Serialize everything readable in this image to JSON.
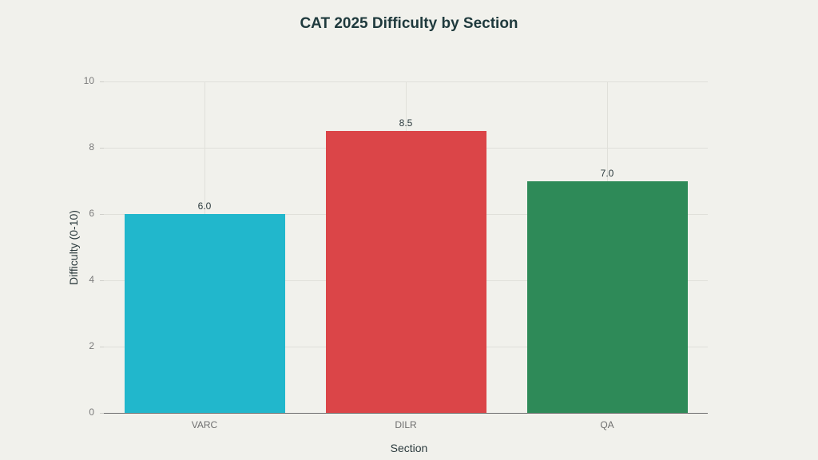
{
  "chart_data": {
    "type": "bar",
    "title": "CAT 2025 Difficulty by Section",
    "xlabel": "Section",
    "ylabel": "Difficulty (0-10)",
    "categories": [
      "VARC",
      "DILR",
      "QA"
    ],
    "values": [
      6.0,
      8.5,
      7.0
    ],
    "value_labels": [
      "6.0",
      "8.5",
      "7.0"
    ],
    "colors": [
      "#21b7cc",
      "#db4548",
      "#2e8a58"
    ],
    "ylim": [
      0,
      10
    ],
    "yticks": [
      "0",
      "2",
      "4",
      "6",
      "8",
      "10"
    ],
    "grid": true,
    "legend": null
  }
}
